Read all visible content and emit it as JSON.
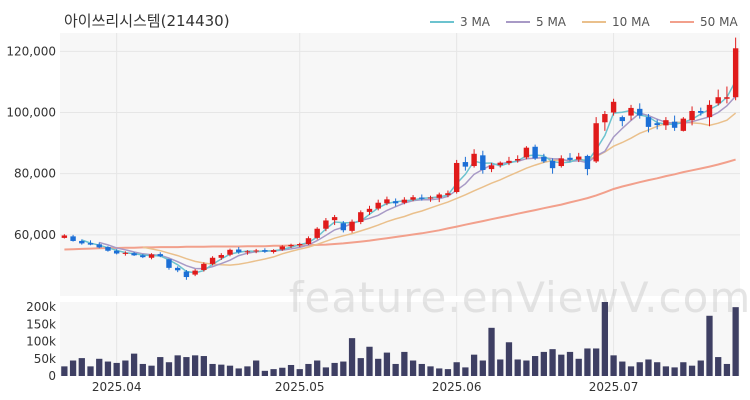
{
  "chart_data": {
    "type": "candlestick",
    "title": "아이쓰리시스템(214430)",
    "watermark": "feature.enViewV.com",
    "legend": [
      {
        "name": "3 MA",
        "color": "#6cc3cf"
      },
      {
        "name": "5 MA",
        "color": "#a89ac6"
      },
      {
        "name": "10 MA",
        "color": "#eac08c"
      },
      {
        "name": "50 MA",
        "color": "#f2a08c"
      }
    ],
    "x_labels": [
      {
        "index": 6,
        "label": "2025.04"
      },
      {
        "index": 27,
        "label": "2025.05"
      },
      {
        "index": 45,
        "label": "2025.06"
      },
      {
        "index": 63,
        "label": "2025.07"
      }
    ],
    "price_axis": {
      "ticks": [
        60000,
        80000,
        100000,
        120000
      ],
      "tick_labels": [
        "60,000",
        "80,000",
        "100,000",
        "120,000"
      ],
      "min": 40000,
      "max": 126000
    },
    "volume_axis": {
      "ticks": [
        0,
        50000,
        100000,
        150000,
        200000
      ],
      "tick_labels": [
        "0",
        "50k",
        "100k",
        "150k",
        "200k"
      ],
      "min": 0,
      "max": 215000
    },
    "colors": {
      "up": "#e01b1b",
      "down": "#1c6fd6",
      "volume": "#3e3f63",
      "grid": "#e6e6e6",
      "plot_bg": "#f7f7f7"
    },
    "ohlc": [
      [
        59000,
        60200,
        58800,
        59800
      ],
      [
        59500,
        60000,
        57800,
        58000
      ],
      [
        58000,
        58500,
        56800,
        57200
      ],
      [
        57300,
        58200,
        56600,
        56800
      ],
      [
        56900,
        57500,
        55600,
        55900
      ],
      [
        56000,
        56300,
        54500,
        54800
      ],
      [
        54800,
        55300,
        53600,
        53900
      ],
      [
        53900,
        54600,
        53200,
        54100
      ],
      [
        54000,
        54400,
        53100,
        53300
      ],
      [
        53300,
        53700,
        52400,
        52700
      ],
      [
        52500,
        54000,
        52000,
        53600
      ],
      [
        53700,
        54300,
        52700,
        53000
      ],
      [
        52000,
        52200,
        48600,
        49200
      ],
      [
        49200,
        49700,
        47800,
        48400
      ],
      [
        48000,
        48500,
        45300,
        46200
      ],
      [
        47000,
        48800,
        46500,
        48300
      ],
      [
        48500,
        51000,
        48000,
        50500
      ],
      [
        50500,
        53000,
        50000,
        52500
      ],
      [
        52500,
        54000,
        51800,
        53400
      ],
      [
        53500,
        55500,
        53000,
        55100
      ],
      [
        55200,
        56000,
        53800,
        54300
      ],
      [
        54300,
        55000,
        53500,
        54600
      ],
      [
        54700,
        55400,
        54000,
        54900
      ],
      [
        55000,
        55600,
        54100,
        54500
      ],
      [
        54400,
        55300,
        53900,
        55000
      ],
      [
        55200,
        56600,
        54800,
        56200
      ],
      [
        56300,
        57100,
        55700,
        56700
      ],
      [
        56600,
        57400,
        56000,
        57000
      ],
      [
        57000,
        59500,
        56700,
        58900
      ],
      [
        59000,
        62500,
        58500,
        62000
      ],
      [
        62000,
        65500,
        61200,
        64700
      ],
      [
        64800,
        66500,
        63200,
        65800
      ],
      [
        63800,
        64500,
        60800,
        61500
      ],
      [
        61300,
        65000,
        60700,
        64300
      ],
      [
        64200,
        68000,
        63500,
        67400
      ],
      [
        67500,
        69500,
        66500,
        68500
      ],
      [
        68600,
        71500,
        68000,
        70500
      ],
      [
        70300,
        72500,
        69700,
        71600
      ],
      [
        71000,
        71900,
        69300,
        70300
      ],
      [
        70500,
        72300,
        70000,
        71500
      ],
      [
        71500,
        73000,
        71000,
        72300
      ],
      [
        72200,
        73200,
        71200,
        71800
      ],
      [
        71900,
        72800,
        70800,
        72200
      ],
      [
        72100,
        73800,
        70700,
        73200
      ],
      [
        73000,
        74500,
        72300,
        73600
      ],
      [
        74000,
        84500,
        73500,
        83500
      ],
      [
        83800,
        85500,
        81000,
        82300
      ],
      [
        82500,
        88000,
        82000,
        86500
      ],
      [
        86000,
        87500,
        80000,
        81200
      ],
      [
        81500,
        83500,
        80500,
        82700
      ],
      [
        82800,
        84000,
        82000,
        83600
      ],
      [
        83500,
        85500,
        82800,
        84200
      ],
      [
        84300,
        86000,
        83600,
        84800
      ],
      [
        85300,
        89000,
        84700,
        88500
      ],
      [
        88800,
        89500,
        84500,
        85000
      ],
      [
        85500,
        86500,
        83500,
        84000
      ],
      [
        84200,
        85000,
        80000,
        81800
      ],
      [
        82500,
        86000,
        82000,
        85000
      ],
      [
        85200,
        86700,
        84000,
        84500
      ],
      [
        84600,
        86800,
        83800,
        85600
      ],
      [
        85800,
        86200,
        79500,
        81500
      ],
      [
        84000,
        98500,
        83500,
        96500
      ],
      [
        96800,
        100500,
        94000,
        99500
      ],
      [
        100000,
        104500,
        99000,
        103500
      ],
      [
        98500,
        99000,
        95500,
        97200
      ],
      [
        99000,
        102500,
        97500,
        101500
      ],
      [
        101200,
        103000,
        98000,
        99000
      ],
      [
        98500,
        99500,
        93500,
        95300
      ],
      [
        96500,
        97700,
        94500,
        95900
      ],
      [
        95800,
        98500,
        94300,
        97500
      ],
      [
        97000,
        99000,
        94000,
        95000
      ],
      [
        94000,
        98500,
        93800,
        98000
      ],
      [
        97500,
        102000,
        95800,
        100500
      ],
      [
        100500,
        101600,
        99000,
        99900
      ],
      [
        98500,
        104000,
        95500,
        102500
      ],
      [
        103000,
        107500,
        102300,
        105000
      ],
      [
        104500,
        108500,
        103000,
        105000
      ],
      [
        105000,
        124500,
        104000,
        121000
      ]
    ],
    "volume": [
      28000,
      45000,
      52000,
      28000,
      50000,
      42000,
      38000,
      45000,
      65000,
      35000,
      30000,
      55000,
      40000,
      60000,
      55000,
      60000,
      58000,
      35000,
      33000,
      30000,
      22000,
      28000,
      45000,
      15000,
      20000,
      24000,
      32000,
      20000,
      35000,
      45000,
      25000,
      38000,
      42000,
      110000,
      52000,
      85000,
      50000,
      68000,
      35000,
      70000,
      45000,
      35000,
      28000,
      22000,
      20000,
      40000,
      25000,
      62000,
      45000,
      140000,
      48000,
      98000,
      48000,
      45000,
      58000,
      70000,
      78000,
      62000,
      70000,
      50000,
      80000,
      80000,
      215000,
      60000,
      42000,
      28000,
      40000,
      48000,
      40000,
      28000,
      25000,
      40000,
      30000,
      45000,
      175000,
      55000,
      35000,
      200000
    ],
    "ma3": [
      null,
      null,
      58300,
      57300,
      56600,
      55800,
      54900,
      54200,
      53800,
      53400,
      53200,
      53100,
      51800,
      50200,
      48000,
      47600,
      48300,
      50400,
      52100,
      53700,
      54300,
      54700,
      54600,
      54700,
      54800,
      55200,
      56000,
      56700,
      57500,
      59300,
      61900,
      64200,
      64000,
      63900,
      64500,
      66700,
      68800,
      70200,
      70800,
      71100,
      71400,
      71900,
      72100,
      72400,
      73000,
      76800,
      79800,
      84100,
      83400,
      83500,
      82500,
      83500,
      84200,
      85800,
      86100,
      85800,
      83900,
      83600,
      83800,
      85000,
      83900,
      87900,
      92500,
      99800,
      100100,
      100700,
      99200,
      98600,
      96700,
      96200,
      96100,
      96800,
      97800,
      99500,
      101000,
      102500,
      105000,
      110300
    ],
    "ma5": [
      null,
      null,
      null,
      null,
      57500,
      56700,
      55700,
      55100,
      54400,
      53800,
      53500,
      53300,
      52400,
      51200,
      49900,
      49000,
      48900,
      49600,
      50600,
      51700,
      53200,
      54000,
      54500,
      54700,
      54700,
      55000,
      55400,
      55900,
      56700,
      58100,
      59800,
      61600,
      62500,
      63700,
      64700,
      65400,
      66400,
      68000,
      69200,
      70400,
      71200,
      71500,
      71500,
      71800,
      72600,
      74600,
      76700,
      79800,
      81400,
      82900,
      83200,
      83800,
      84000,
      84900,
      85100,
      85200,
      84900,
      84800,
      84000,
      84200,
      83600,
      85800,
      87300,
      92000,
      94800,
      97400,
      99800,
      99000,
      97800,
      96800,
      96500,
      96500,
      97000,
      97800,
      98600,
      100000,
      102200,
      105300
    ],
    "ma10": [
      null,
      null,
      null,
      null,
      null,
      null,
      null,
      null,
      null,
      56000,
      55400,
      54800,
      54000,
      53200,
      52200,
      51300,
      50800,
      50400,
      50200,
      50100,
      50400,
      50900,
      51500,
      52100,
      52800,
      53800,
      54600,
      55300,
      56000,
      56900,
      57900,
      58900,
      59700,
      60400,
      61300,
      62200,
      63200,
      64300,
      65200,
      66000,
      67000,
      67800,
      68800,
      69800,
      70700,
      71900,
      73100,
      74400,
      75600,
      76900,
      78000,
      79300,
      80500,
      81800,
      82800,
      83700,
      84300,
      84500,
      84200,
      84300,
      84600,
      85600,
      87100,
      89000,
      90200,
      91600,
      93200,
      94300,
      95500,
      96400,
      96800,
      96800,
      96600,
      96400,
      95800,
      96500,
      97500,
      99800
    ],
    "ma50": [
      55200,
      55300,
      55400,
      55500,
      55600,
      55700,
      55700,
      55800,
      55800,
      55900,
      55900,
      56000,
      56000,
      56000,
      56100,
      56100,
      56100,
      56200,
      56200,
      56200,
      56200,
      56300,
      56300,
      56300,
      56400,
      56400,
      56500,
      56500,
      56600,
      56700,
      56800,
      57000,
      57200,
      57500,
      57800,
      58100,
      58500,
      58900,
      59300,
      59700,
      60100,
      60500,
      61000,
      61500,
      62100,
      62700,
      63300,
      63900,
      64500,
      65100,
      65700,
      66300,
      66900,
      67500,
      68100,
      68700,
      69300,
      69900,
      70600,
      71300,
      72000,
      72900,
      73900,
      75000,
      75800,
      76500,
      77200,
      77900,
      78500,
      79200,
      79800,
      80500,
      81100,
      81700,
      82300,
      83000,
      83800,
      84600
    ]
  }
}
